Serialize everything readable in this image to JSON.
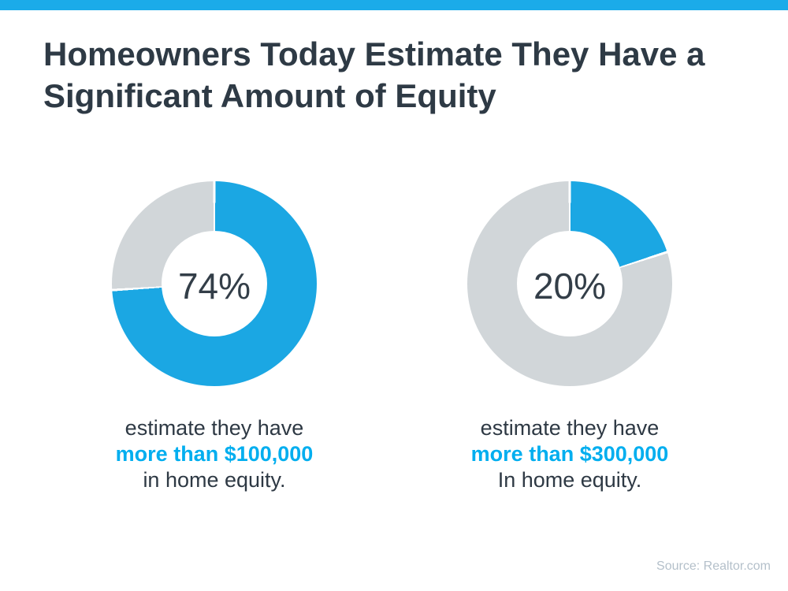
{
  "page": {
    "title_lines": [
      "Homeowners Today Estimate They Have a",
      "Significant Amount of Equity"
    ],
    "source": "Source: Realtor.com"
  },
  "colors": {
    "accent_bar": "#1babe9",
    "chart_blue": "#1ba7e3",
    "chart_gray": "#d1d6d9",
    "title_dark": "#2e3a45",
    "caption_blue": "#00aeef",
    "source_gray": "#b4c0ca"
  },
  "chart_data": [
    {
      "type": "pie",
      "subtype": "donut",
      "center_label": "74%",
      "series": [
        {
          "name": "estimate they have more than $100,000 in home equity",
          "value": 74,
          "color": "#1ba7e3"
        },
        {
          "name": "remainder",
          "value": 26,
          "color": "#d1d6d9"
        }
      ],
      "start_angle_deg": 0,
      "direction": "clockwise",
      "caption": {
        "line1": "estimate they have",
        "line2": "more than $100,000",
        "line3": "in home equity."
      }
    },
    {
      "type": "pie",
      "subtype": "donut",
      "center_label": "20%",
      "series": [
        {
          "name": "estimate they have more than $300,000 in home equity",
          "value": 20,
          "color": "#1ba7e3"
        },
        {
          "name": "remainder",
          "value": 80,
          "color": "#d1d6d9"
        }
      ],
      "start_angle_deg": 0,
      "direction": "clockwise",
      "caption": {
        "line1": "estimate they have",
        "line2": "more than $300,000",
        "line3": "In home equity."
      }
    }
  ]
}
